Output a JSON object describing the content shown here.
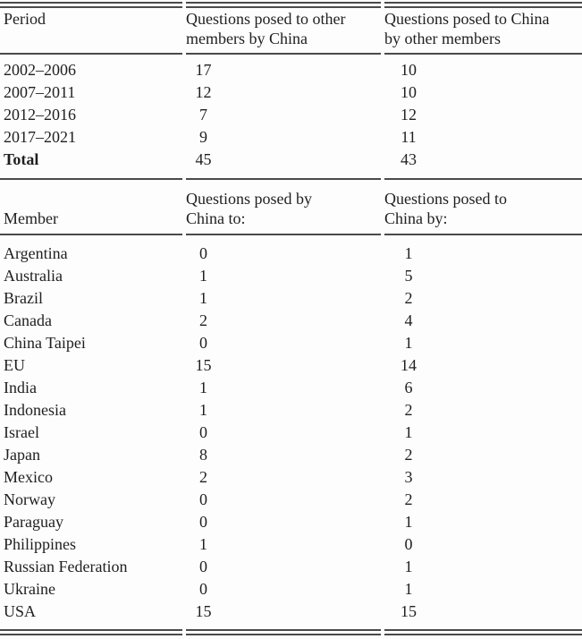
{
  "page": {
    "background": "#fdfdfd",
    "ink_color": "#1f1f1f",
    "rule_color": "#4a4a4a"
  },
  "period_table": {
    "headers": {
      "col1": "Period",
      "col2": "Questions posed to other\nmembers by China",
      "col3": "Questions posed to China\nby other members"
    },
    "rows": [
      {
        "label": "2002–2006",
        "by_china": "17",
        "to_china": "10"
      },
      {
        "label": "2007–2011",
        "by_china": "12",
        "to_china": "10"
      },
      {
        "label": "2012–2016",
        "by_china": "7",
        "to_china": "12"
      },
      {
        "label": "2017–2021",
        "by_china": "9",
        "to_china": "11"
      },
      {
        "label": "Total",
        "by_china": "45",
        "to_china": "43",
        "is_total": true
      }
    ]
  },
  "member_table": {
    "headers": {
      "col1": "Member",
      "col2": "Questions posed by\nChina to:",
      "col3": "Questions posed to\nChina by:"
    },
    "rows": [
      {
        "label": "Argentina",
        "by_china": "0",
        "to_china": "1"
      },
      {
        "label": "Australia",
        "by_china": "1",
        "to_china": "5"
      },
      {
        "label": "Brazil",
        "by_china": "1",
        "to_china": "2"
      },
      {
        "label": "Canada",
        "by_china": "2",
        "to_china": "4"
      },
      {
        "label": "China Taipei",
        "by_china": "0",
        "to_china": "1"
      },
      {
        "label": "EU",
        "by_china": "15",
        "to_china": "14"
      },
      {
        "label": "India",
        "by_china": "1",
        "to_china": "6"
      },
      {
        "label": "Indonesia",
        "by_china": "1",
        "to_china": "2"
      },
      {
        "label": "Israel",
        "by_china": "0",
        "to_china": "1"
      },
      {
        "label": "Japan",
        "by_china": "8",
        "to_china": "2"
      },
      {
        "label": "Mexico",
        "by_china": "2",
        "to_china": "3"
      },
      {
        "label": "Norway",
        "by_china": "0",
        "to_china": "2"
      },
      {
        "label": "Paraguay",
        "by_china": "0",
        "to_china": "1"
      },
      {
        "label": "Philippines",
        "by_china": "1",
        "to_china": "0"
      },
      {
        "label": "Russian Federation",
        "by_china": "0",
        "to_china": "1"
      },
      {
        "label": "Ukraine",
        "by_china": "0",
        "to_china": "1"
      },
      {
        "label": "USA",
        "by_china": "15",
        "to_china": "15"
      }
    ]
  }
}
